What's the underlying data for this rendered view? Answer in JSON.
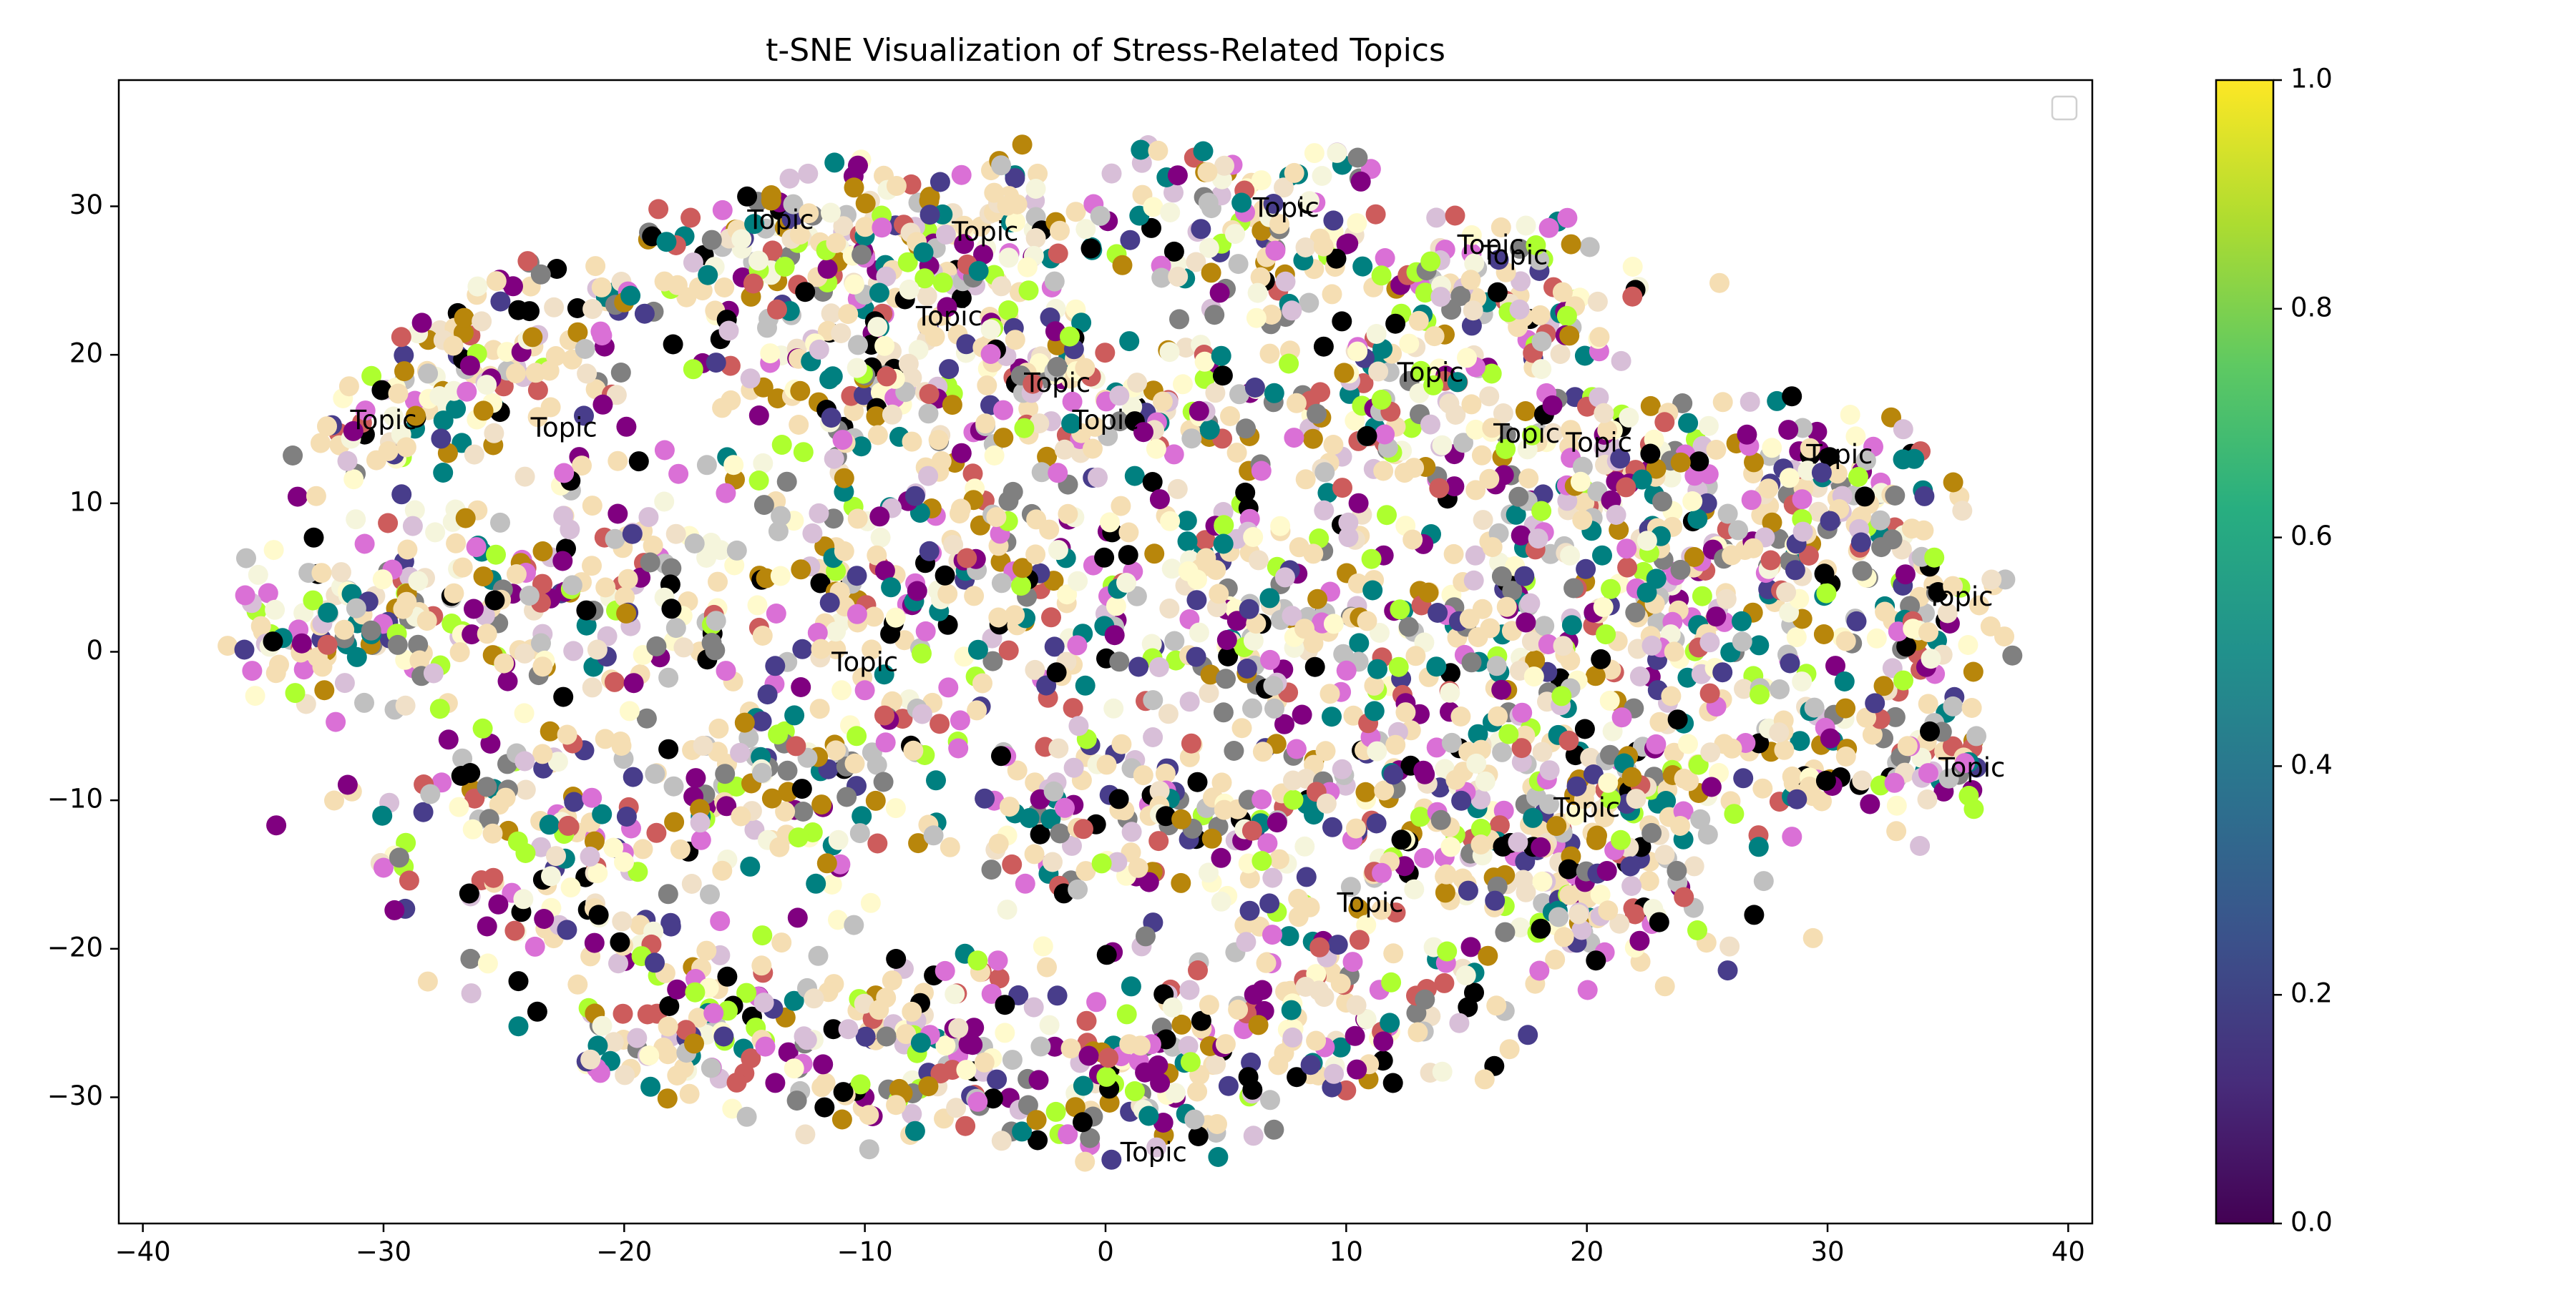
{
  "chart_data": {
    "type": "scatter",
    "title": "t-SNE Visualization of Stress-Related Topics",
    "xlabel": "",
    "ylabel": "",
    "xlim": [
      -41,
      41
    ],
    "ylim": [
      -38.5,
      38.5
    ],
    "xticks": [
      -40,
      -30,
      -20,
      -10,
      0,
      10,
      20,
      30,
      40
    ],
    "yticks": [
      -30,
      -20,
      -10,
      0,
      10,
      20,
      30
    ],
    "grid": false,
    "legend": {
      "placement": "top-right",
      "entries": []
    },
    "colorbar": {
      "colormap": "viridis",
      "range": [
        0,
        1
      ],
      "ticks": [
        0.0,
        0.2,
        0.4,
        0.6,
        0.8,
        1.0
      ],
      "tick_labels": [
        "0.0",
        "0.2",
        "0.4",
        "0.6",
        "0.8",
        "1.0"
      ]
    },
    "palette": [
      "#f5deb3",
      "#f5deb3",
      "#f5deb3",
      "#f0e0c8",
      "#000000",
      "#da70d6",
      "#808080",
      "#c0c0c0",
      "#adff2f",
      "#cd5c5c",
      "#483d8b",
      "#008080",
      "#b8860b",
      "#800080",
      "#f5f5dc",
      "#fffacd",
      "#d8bfd8"
    ],
    "clusters": [
      {
        "x": -30,
        "y": 17,
        "sx": 3.5,
        "sy": 3,
        "n": 70
      },
      {
        "x": -24,
        "y": 21,
        "sx": 3,
        "sy": 3,
        "n": 80
      },
      {
        "x": -14,
        "y": 27,
        "sx": 3,
        "sy": 3,
        "n": 110
      },
      {
        "x": -6,
        "y": 28,
        "sx": 3,
        "sy": 3,
        "n": 110
      },
      {
        "x": 6,
        "y": 29,
        "sx": 3.5,
        "sy": 3,
        "n": 110
      },
      {
        "x": 17,
        "y": 24,
        "sx": 3,
        "sy": 3,
        "n": 100
      },
      {
        "x": -10,
        "y": 18,
        "sx": 4,
        "sy": 4,
        "n": 140
      },
      {
        "x": 0,
        "y": 17,
        "sx": 4,
        "sy": 4,
        "n": 140
      },
      {
        "x": 12,
        "y": 16,
        "sx": 4,
        "sy": 4,
        "n": 140
      },
      {
        "x": 22,
        "y": 12,
        "sx": 3,
        "sy": 3,
        "n": 110
      },
      {
        "x": 30,
        "y": 10,
        "sx": 3,
        "sy": 3,
        "n": 90
      },
      {
        "x": -30,
        "y": 3,
        "sx": 4,
        "sy": 3.5,
        "n": 120
      },
      {
        "x": -20,
        "y": 5,
        "sx": 4,
        "sy": 4,
        "n": 130
      },
      {
        "x": -8,
        "y": 5,
        "sx": 4,
        "sy": 4,
        "n": 150
      },
      {
        "x": 5,
        "y": 3,
        "sx": 4,
        "sy": 4,
        "n": 170
      },
      {
        "x": 17,
        "y": 2,
        "sx": 4,
        "sy": 4,
        "n": 150
      },
      {
        "x": 26,
        "y": 3,
        "sx": 3.5,
        "sy": 4,
        "n": 120
      },
      {
        "x": 34,
        "y": 2,
        "sx": 2,
        "sy": 3,
        "n": 60
      },
      {
        "x": -24,
        "y": -12,
        "sx": 4,
        "sy": 4,
        "n": 130
      },
      {
        "x": -13,
        "y": -9,
        "sx": 4,
        "sy": 4,
        "n": 140
      },
      {
        "x": 2,
        "y": -10,
        "sx": 4,
        "sy": 4,
        "n": 160
      },
      {
        "x": 14,
        "y": -10,
        "sx": 4,
        "sy": 4,
        "n": 140
      },
      {
        "x": 22,
        "y": -10,
        "sx": 3,
        "sy": 4,
        "n": 110
      },
      {
        "x": 30,
        "y": -7,
        "sx": 3,
        "sy": 3,
        "n": 80
      },
      {
        "x": 35,
        "y": -8,
        "sx": 1.3,
        "sy": 2,
        "n": 30
      },
      {
        "x": -17,
        "y": -25,
        "sx": 4,
        "sy": 4,
        "n": 130
      },
      {
        "x": -8,
        "y": -27,
        "sx": 3.5,
        "sy": 3.5,
        "n": 120
      },
      {
        "x": 2,
        "y": -28,
        "sx": 3,
        "sy": 3.5,
        "n": 110
      },
      {
        "x": 10,
        "y": -24,
        "sx": 3.5,
        "sy": 4,
        "n": 120
      },
      {
        "x": 20,
        "y": -17,
        "sx": 3,
        "sy": 3,
        "n": 90
      },
      {
        "x": -34,
        "y": 1,
        "sx": 1.5,
        "sy": 1.5,
        "n": 30
      }
    ],
    "annotations": [
      {
        "text": "Topic",
        "x": -30,
        "y": 15.5
      },
      {
        "text": "Topic",
        "x": -22.5,
        "y": 15
      },
      {
        "text": "Topic",
        "x": -13.5,
        "y": 29
      },
      {
        "text": "Topic",
        "x": -5,
        "y": 28.2
      },
      {
        "text": "Topic",
        "x": -6.5,
        "y": 22.5
      },
      {
        "text": "Topic",
        "x": -2,
        "y": 18
      },
      {
        "text": "Topic",
        "x": 0,
        "y": 15.5
      },
      {
        "text": "Topic",
        "x": 7.5,
        "y": 29.8
      },
      {
        "text": "Topic",
        "x": 16,
        "y": 27.3
      },
      {
        "text": "Topic",
        "x": 17,
        "y": 26.6
      },
      {
        "text": "Topic",
        "x": 13.5,
        "y": 18.7
      },
      {
        "text": "Topic",
        "x": 17.5,
        "y": 14.6
      },
      {
        "text": "Topic",
        "x": 20.5,
        "y": 14
      },
      {
        "text": "Topic",
        "x": 30.5,
        "y": 13.2
      },
      {
        "text": "Topic",
        "x": 35.5,
        "y": 3.6
      },
      {
        "text": "Topic",
        "x": -10,
        "y": -0.8
      },
      {
        "text": "Topic",
        "x": 36,
        "y": -7.9
      },
      {
        "text": "Topic",
        "x": 20,
        "y": -10.6
      },
      {
        "text": "Topic",
        "x": 11,
        "y": -17
      },
      {
        "text": "Topic",
        "x": 2,
        "y": -33.8
      }
    ]
  }
}
